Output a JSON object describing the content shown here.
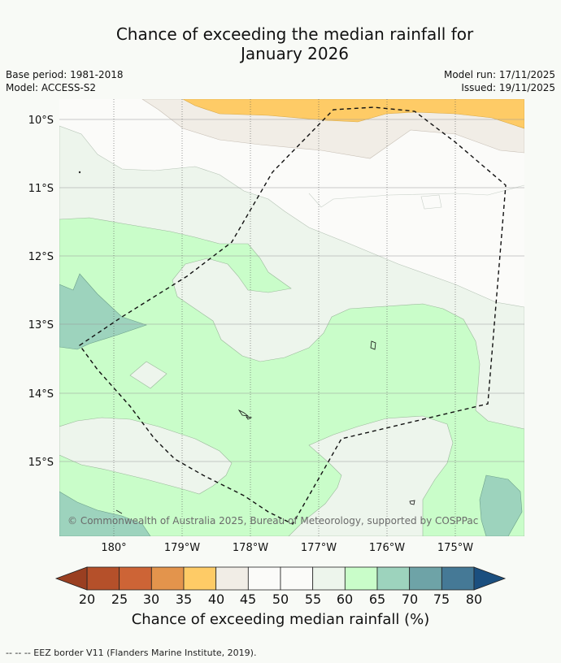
{
  "title": {
    "line1": "Chance of exceeding the median rainfall for",
    "line2": "January 2026"
  },
  "meta": {
    "base_period": "Base period: 1981-2018",
    "model": "Model: ACCESS-S2",
    "model_run": "Model run: 17/11/2025",
    "issued": "Issued: 19/11/2025"
  },
  "map": {
    "lat_labels": [
      "10°S",
      "11°S",
      "12°S",
      "13°S",
      "14°S",
      "15°S"
    ],
    "lon_labels": [
      "180°",
      "179°W",
      "178°W",
      "177°W",
      "176°W",
      "175°W"
    ],
    "copyright": "© Commonwealth of Australia 2025, Bureau of Meteorology, supported by COSPPac"
  },
  "colorbar": {
    "ticks": [
      "20",
      "25",
      "30",
      "35",
      "40",
      "45",
      "50",
      "55",
      "60",
      "65",
      "70",
      "75",
      "80"
    ],
    "colors": [
      "#b5502a",
      "#cd6436",
      "#e3944c",
      "#fecb66",
      "#f1ede6",
      "#fbfbf9",
      "#fbfbf9",
      "#edf5ec",
      "#c9fdc9",
      "#9dd3bd",
      "#6ea3a7",
      "#457996"
    ],
    "under_color": "#9a3f21",
    "over_color": "#1b4f7f",
    "title": "Chance of exceeding median rainfall (%)"
  },
  "footer": "--  --  -- EEZ border V11 (Flanders Marine Institute, 2019)."
}
